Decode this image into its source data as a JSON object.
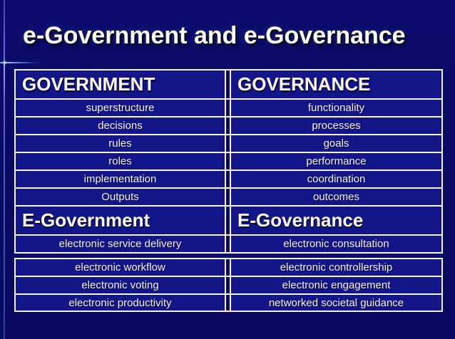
{
  "slide": {
    "title": "e-Government and e-Governance"
  },
  "colors": {
    "page_background": "#0a0a64",
    "cell_background": "#15158a",
    "border": "#f4f4f6",
    "text": "#ffffff",
    "accent_line": "#7da7ff"
  },
  "table": {
    "rows": [
      {
        "type": "header",
        "left": "GOVERNMENT",
        "right": "GOVERNANCE"
      },
      {
        "type": "data",
        "left": "superstructure",
        "right": "functionality"
      },
      {
        "type": "data",
        "left": "decisions",
        "right": "processes"
      },
      {
        "type": "data",
        "left": "rules",
        "right": "goals"
      },
      {
        "type": "data",
        "left": "roles",
        "right": "performance"
      },
      {
        "type": "data",
        "left": "implementation",
        "right": "coordination"
      },
      {
        "type": "data",
        "left": "Outputs",
        "right": "outcomes"
      },
      {
        "type": "header",
        "left": "E-Government",
        "right": "E-Governance"
      },
      {
        "type": "data",
        "left": "electronic service delivery",
        "right": "electronic consultation"
      },
      {
        "type": "data",
        "left": "electronic workflow",
        "right": "electronic controllership"
      },
      {
        "type": "data",
        "left": "electronic voting",
        "right": "electronic engagement"
      },
      {
        "type": "data",
        "left": "electronic productivity",
        "right": "networked societal guidance"
      }
    ]
  }
}
